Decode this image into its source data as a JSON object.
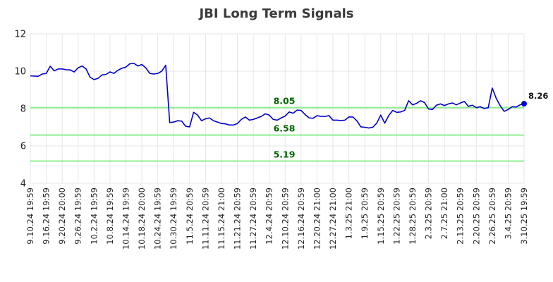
{
  "chart_data": {
    "type": "line",
    "title": "JBI Long Term Signals",
    "xlabel": "",
    "ylabel": "",
    "ylim": [
      4,
      12
    ],
    "y_ticks": [
      4,
      6,
      8,
      10,
      12
    ],
    "grid": true,
    "line_color": "#0000cc",
    "level_color": "#90ee90",
    "level_label_color": "#006400",
    "x_tick_labels": [
      "9.10.24 19:59",
      "9.16.24 19:59",
      "9.20.24 20:00",
      "9.26.24 19:59",
      "10.2.24 19:59",
      "10.8.24 19:59",
      "10.14.24 19:59",
      "10.18.24 20:00",
      "10.24.24 19:59",
      "10.30.24 19:59",
      "11.5.24 20:59",
      "11.11.24 20:59",
      "11.15.24 21:00",
      "11.21.24 20:59",
      "11.27.24 20:59",
      "12.4.24 20:59",
      "12.10.24 20:59",
      "12.16.24 20:59",
      "12.20.24 21:00",
      "12.27.24 21:00",
      "1.3.25 21:00",
      "1.9.25 20:59",
      "1.15.25 20:59",
      "1.22.25 20:59",
      "1.28.25 20:59",
      "2.3.25 20:59",
      "2.7.25 21:00",
      "2.13.25 20:59",
      "2.20.25 20:59",
      "2.26.25 20:59",
      "3.4.25 20:59",
      "3.10.25 19:59"
    ],
    "levels": [
      {
        "value": 8.05,
        "label": "8.05"
      },
      {
        "value": 6.58,
        "label": "6.58"
      },
      {
        "value": 5.19,
        "label": "5.19"
      }
    ],
    "last_value_label": "8.26",
    "series": [
      {
        "values": [
          9.75,
          9.74,
          9.73,
          9.85,
          9.88,
          10.27,
          10.02,
          10.12,
          10.12,
          10.08,
          10.07,
          9.96,
          10.18,
          10.28,
          10.12,
          9.68,
          9.55,
          9.62,
          9.8,
          9.83,
          9.96,
          9.88,
          10.05,
          10.16,
          10.22,
          10.4,
          10.42,
          10.28,
          10.36,
          10.18,
          9.88,
          9.85,
          9.88,
          10.0,
          10.32,
          7.25,
          7.28,
          7.35,
          7.33,
          7.05,
          7.02,
          7.8,
          7.65,
          7.35,
          7.45,
          7.5,
          7.35,
          7.28,
          7.2,
          7.18,
          7.12,
          7.12,
          7.2,
          7.42,
          7.55,
          7.38,
          7.42,
          7.5,
          7.58,
          7.72,
          7.65,
          7.42,
          7.38,
          7.5,
          7.6,
          7.82,
          7.75,
          7.92,
          7.9,
          7.68,
          7.5,
          7.48,
          7.62,
          7.58,
          7.58,
          7.62,
          7.38,
          7.38,
          7.36,
          7.38,
          7.55,
          7.55,
          7.35,
          7.02,
          7.0,
          6.96,
          7.0,
          7.22,
          7.65,
          7.22,
          7.62,
          7.9,
          7.8,
          7.82,
          7.9,
          8.42,
          8.2,
          8.28,
          8.42,
          8.32,
          7.98,
          7.95,
          8.18,
          8.25,
          8.16,
          8.25,
          8.3,
          8.2,
          8.3,
          8.38,
          8.12,
          8.18,
          8.05,
          8.1,
          8.0,
          8.05,
          9.1,
          8.55,
          8.15,
          7.85,
          7.95,
          8.1,
          8.08,
          8.2,
          8.26
        ]
      }
    ]
  }
}
